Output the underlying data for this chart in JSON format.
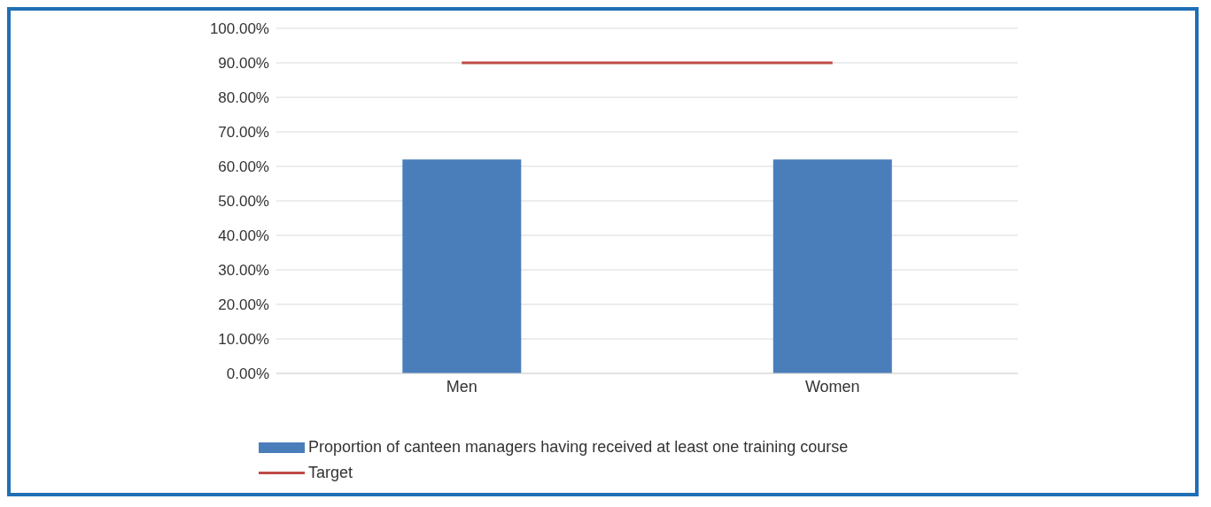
{
  "chart_data": {
    "type": "bar",
    "categories": [
      "Men",
      "Women"
    ],
    "series": [
      {
        "name": "Proportion of canteen managers having received at least one training course",
        "color": "#4a7ebb",
        "values": [
          62,
          62
        ]
      },
      {
        "name": "Target",
        "type": "line",
        "color": "#be4b48",
        "values": [
          90,
          90
        ]
      }
    ],
    "ylim": [
      0,
      100
    ],
    "yticks": [
      {
        "value": 0,
        "label": "0.00%"
      },
      {
        "value": 10,
        "label": "10.00%"
      },
      {
        "value": 20,
        "label": "20.00%"
      },
      {
        "value": 30,
        "label": "30.00%"
      },
      {
        "value": 40,
        "label": "40.00%"
      },
      {
        "value": 50,
        "label": "50.00%"
      },
      {
        "value": 60,
        "label": "60.00%"
      },
      {
        "value": 70,
        "label": "70.00%"
      },
      {
        "value": 80,
        "label": "80.00%"
      },
      {
        "value": 90,
        "label": "90.00%"
      },
      {
        "value": 100,
        "label": "100.00%"
      }
    ],
    "grid": "y",
    "legend": "bottom",
    "marker": "none"
  }
}
